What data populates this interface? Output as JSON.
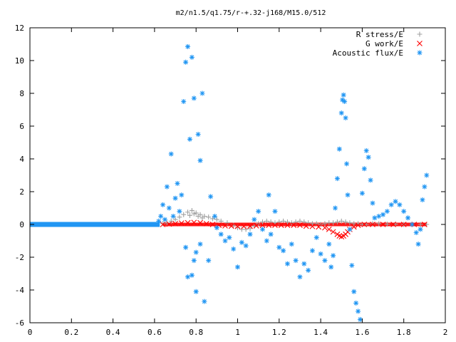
{
  "chart_data": {
    "type": "scatter",
    "title": "m2/n1.5/q1.75/r-+.32-j168/M15.0/512",
    "xlabel": "",
    "ylabel": "",
    "xlim": [
      0,
      2
    ],
    "ylim": [
      -6,
      12
    ],
    "x_ticks": [
      "0",
      "0.2",
      "0.4",
      "0.6",
      "0.8",
      "1",
      "1.2",
      "1.4",
      "1.6",
      "1.8",
      "2"
    ],
    "y_ticks": [
      "-6",
      "-4",
      "-2",
      "0",
      "2",
      "4",
      "6",
      "8",
      "10",
      "12"
    ],
    "grid": false,
    "legend_position": "top-right",
    "series": [
      {
        "name": "R stress/E",
        "marker": "plus",
        "color": "#a0a0a0",
        "points": [
          [
            0.64,
            0.05
          ],
          [
            0.66,
            0.1
          ],
          [
            0.68,
            0.2
          ],
          [
            0.7,
            0.3
          ],
          [
            0.72,
            0.45
          ],
          [
            0.74,
            0.6
          ],
          [
            0.76,
            0.75
          ],
          [
            0.77,
            0.55
          ],
          [
            0.78,
            0.85
          ],
          [
            0.79,
            0.65
          ],
          [
            0.8,
            0.7
          ],
          [
            0.81,
            0.5
          ],
          [
            0.82,
            0.6
          ],
          [
            0.83,
            0.4
          ],
          [
            0.84,
            0.5
          ],
          [
            0.86,
            0.45
          ],
          [
            0.88,
            0.35
          ],
          [
            0.9,
            0.3
          ],
          [
            0.92,
            0.2
          ],
          [
            0.95,
            0.1
          ],
          [
            0.98,
            -0.05
          ],
          [
            1.0,
            -0.2
          ],
          [
            1.02,
            -0.3
          ],
          [
            1.04,
            -0.3
          ],
          [
            1.06,
            -0.25
          ],
          [
            1.08,
            -0.1
          ],
          [
            1.1,
            0.05
          ],
          [
            1.12,
            0.15
          ],
          [
            1.14,
            0.2
          ],
          [
            1.16,
            0.15
          ],
          [
            1.18,
            0.1
          ],
          [
            1.2,
            0.15
          ],
          [
            1.22,
            0.2
          ],
          [
            1.24,
            0.15
          ],
          [
            1.26,
            0.1
          ],
          [
            1.28,
            0.15
          ],
          [
            1.3,
            0.2
          ],
          [
            1.32,
            0.15
          ],
          [
            1.34,
            0.1
          ],
          [
            1.36,
            0.05
          ],
          [
            1.38,
            0.05
          ],
          [
            1.4,
            0.0
          ],
          [
            1.42,
            0.05
          ],
          [
            1.44,
            0.1
          ],
          [
            1.46,
            0.1
          ],
          [
            1.48,
            0.15
          ],
          [
            1.5,
            0.2
          ],
          [
            1.52,
            0.15
          ],
          [
            1.54,
            0.1
          ],
          [
            1.56,
            0.05
          ],
          [
            1.58,
            0.05
          ],
          [
            1.6,
            0.0
          ],
          [
            1.62,
            0.0
          ],
          [
            1.65,
            0.05
          ],
          [
            1.68,
            0.05
          ],
          [
            1.72,
            0.02
          ],
          [
            1.76,
            0.02
          ],
          [
            1.8,
            0.0
          ],
          [
            1.84,
            0.0
          ],
          [
            1.88,
            0.0
          ],
          [
            1.91,
            0.0
          ]
        ]
      },
      {
        "name": "G work/E",
        "marker": "cross",
        "color": "#ff0000",
        "points": [
          [
            0.64,
            0.0
          ],
          [
            0.67,
            0.02
          ],
          [
            0.7,
            0.05
          ],
          [
            0.73,
            0.08
          ],
          [
            0.76,
            0.1
          ],
          [
            0.79,
            0.12
          ],
          [
            0.82,
            0.1
          ],
          [
            0.85,
            0.05
          ],
          [
            0.88,
            0.0
          ],
          [
            0.91,
            -0.05
          ],
          [
            0.94,
            -0.08
          ],
          [
            0.97,
            -0.1
          ],
          [
            1.0,
            -0.12
          ],
          [
            1.03,
            -0.12
          ],
          [
            1.06,
            -0.1
          ],
          [
            1.09,
            -0.08
          ],
          [
            1.12,
            -0.05
          ],
          [
            1.15,
            -0.05
          ],
          [
            1.18,
            -0.05
          ],
          [
            1.21,
            -0.05
          ],
          [
            1.24,
            -0.05
          ],
          [
            1.27,
            -0.05
          ],
          [
            1.3,
            -0.05
          ],
          [
            1.33,
            -0.1
          ],
          [
            1.36,
            -0.12
          ],
          [
            1.39,
            -0.15
          ],
          [
            1.42,
            -0.2
          ],
          [
            1.44,
            -0.3
          ],
          [
            1.46,
            -0.45
          ],
          [
            1.48,
            -0.6
          ],
          [
            1.49,
            -0.7
          ],
          [
            1.5,
            -0.75
          ],
          [
            1.51,
            -0.7
          ],
          [
            1.52,
            -0.6
          ],
          [
            1.53,
            -0.45
          ],
          [
            1.54,
            -0.3
          ],
          [
            1.56,
            -0.15
          ],
          [
            1.58,
            -0.05
          ],
          [
            1.61,
            0.0
          ],
          [
            1.65,
            0.0
          ],
          [
            1.7,
            0.0
          ],
          [
            1.75,
            0.0
          ],
          [
            1.8,
            0.0
          ],
          [
            1.85,
            0.0
          ],
          [
            1.9,
            0.0
          ]
        ]
      },
      {
        "name": "Acoustic flux/E",
        "marker": "star",
        "color": "#2196f3",
        "points": [
          [
            0.62,
            0.2
          ],
          [
            0.63,
            0.5
          ],
          [
            0.64,
            1.2
          ],
          [
            0.65,
            0.3
          ],
          [
            0.66,
            2.3
          ],
          [
            0.67,
            1.0
          ],
          [
            0.68,
            4.3
          ],
          [
            0.69,
            0.5
          ],
          [
            0.7,
            1.6
          ],
          [
            0.71,
            2.5
          ],
          [
            0.72,
            0.8
          ],
          [
            0.73,
            1.8
          ],
          [
            0.74,
            7.5
          ],
          [
            0.75,
            9.9
          ],
          [
            0.76,
            10.85
          ],
          [
            0.77,
            5.2
          ],
          [
            0.78,
            10.2
          ],
          [
            0.79,
            7.7
          ],
          [
            0.8,
            -4.1
          ],
          [
            0.81,
            5.5
          ],
          [
            0.82,
            3.9
          ],
          [
            0.83,
            8.0
          ],
          [
            0.84,
            -4.7
          ],
          [
            0.75,
            -1.4
          ],
          [
            0.76,
            -3.2
          ],
          [
            0.78,
            -3.1
          ],
          [
            0.79,
            -2.2
          ],
          [
            0.8,
            -1.7
          ],
          [
            0.82,
            -1.2
          ],
          [
            0.86,
            -2.2
          ],
          [
            0.87,
            1.7
          ],
          [
            0.89,
            0.5
          ],
          [
            0.9,
            -0.2
          ],
          [
            0.92,
            -0.6
          ],
          [
            0.94,
            -1.0
          ],
          [
            0.96,
            -0.8
          ],
          [
            0.98,
            -1.5
          ],
          [
            1.0,
            -2.6
          ],
          [
            1.02,
            -1.1
          ],
          [
            1.04,
            -1.3
          ],
          [
            1.06,
            -0.6
          ],
          [
            1.08,
            0.3
          ],
          [
            1.1,
            0.8
          ],
          [
            1.12,
            -0.3
          ],
          [
            1.14,
            -1.0
          ],
          [
            1.15,
            1.8
          ],
          [
            1.16,
            -0.6
          ],
          [
            1.18,
            0.8
          ],
          [
            1.2,
            -1.4
          ],
          [
            1.22,
            -1.6
          ],
          [
            1.24,
            -2.4
          ],
          [
            1.26,
            -1.2
          ],
          [
            1.28,
            -2.2
          ],
          [
            1.3,
            -3.2
          ],
          [
            1.32,
            -2.4
          ],
          [
            1.34,
            -2.8
          ],
          [
            1.36,
            -1.6
          ],
          [
            1.38,
            -0.8
          ],
          [
            1.4,
            -1.8
          ],
          [
            1.42,
            -2.2
          ],
          [
            1.44,
            -1.2
          ],
          [
            1.45,
            -2.6
          ],
          [
            1.46,
            -1.9
          ],
          [
            1.47,
            1.0
          ],
          [
            1.48,
            2.8
          ],
          [
            1.49,
            4.6
          ],
          [
            1.5,
            6.8
          ],
          [
            1.505,
            7.6
          ],
          [
            1.51,
            7.9
          ],
          [
            1.515,
            7.5
          ],
          [
            1.52,
            6.5
          ],
          [
            1.525,
            3.7
          ],
          [
            1.53,
            1.8
          ],
          [
            1.54,
            -0.3
          ],
          [
            1.55,
            -2.5
          ],
          [
            1.56,
            -4.1
          ],
          [
            1.57,
            -4.8
          ],
          [
            1.58,
            -5.3
          ],
          [
            1.59,
            -5.8
          ],
          [
            1.6,
            1.9
          ],
          [
            1.61,
            3.4
          ],
          [
            1.62,
            4.5
          ],
          [
            1.63,
            4.1
          ],
          [
            1.64,
            2.7
          ],
          [
            1.65,
            1.3
          ],
          [
            1.66,
            0.4
          ],
          [
            1.68,
            0.5
          ],
          [
            1.7,
            0.6
          ],
          [
            1.72,
            0.8
          ],
          [
            1.74,
            1.2
          ],
          [
            1.76,
            1.4
          ],
          [
            1.78,
            1.2
          ],
          [
            1.8,
            0.8
          ],
          [
            1.82,
            0.4
          ],
          [
            1.84,
            0.0
          ],
          [
            1.86,
            -0.5
          ],
          [
            1.87,
            -1.2
          ],
          [
            1.88,
            -0.3
          ],
          [
            1.89,
            1.5
          ],
          [
            1.9,
            2.3
          ],
          [
            1.91,
            3.0
          ]
        ]
      }
    ]
  }
}
